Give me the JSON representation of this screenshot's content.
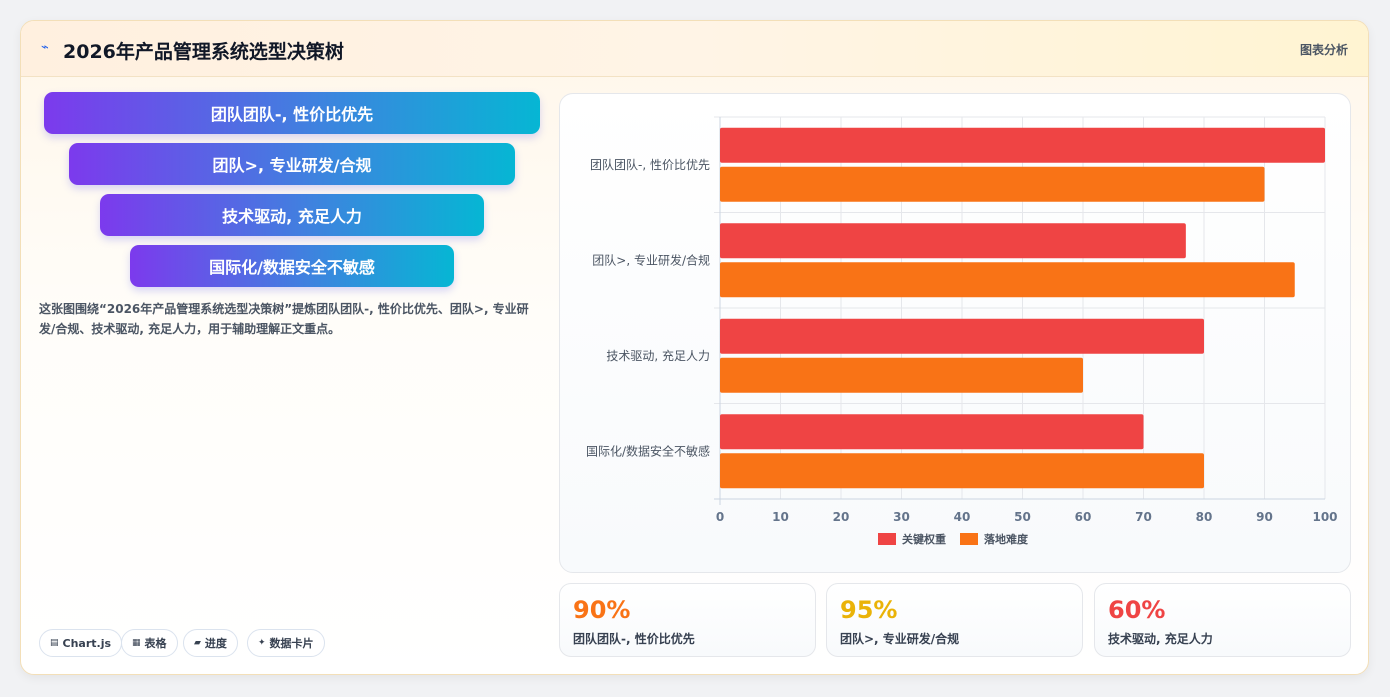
{
  "header": {
    "icon": "sparkle-line-icon",
    "title": "2026年产品管理系统选型决策树",
    "right_label": "图表分析"
  },
  "funnel": {
    "items": [
      {
        "label": "团队团队-, 性价比优先"
      },
      {
        "label": "团队>, 专业研发/合规"
      },
      {
        "label": "技术驱动, 充足人力"
      },
      {
        "label": "国际化/数据安全不敏感"
      }
    ]
  },
  "description": "这张图围绕“2026年产品管理系统选型决策树”提炼团队团队-, 性价比优先、团队>, 专业研发/合规、技术驱动, 充足人力，用于辅助理解正文重点。",
  "chips": [
    {
      "icon": "chart-icon",
      "glyph": "▤",
      "label": "Chart.js"
    },
    {
      "icon": "table-icon",
      "glyph": "▦",
      "label": "表格"
    },
    {
      "icon": "progress-icon",
      "glyph": "▰",
      "label": "进度"
    },
    {
      "icon": "card-icon",
      "glyph": "✦",
      "label": "数据卡片"
    }
  ],
  "chart_data": {
    "type": "bar",
    "orientation": "horizontal",
    "categories": [
      "团队团队-, 性价比优先",
      "团队>, 专业研发/合规",
      "技术驱动, 充足人力",
      "国际化/数据安全不敏感"
    ],
    "series": [
      {
        "name": "关键权重",
        "values": [
          100,
          77,
          80,
          70
        ],
        "color": "#ef4444"
      },
      {
        "name": "落地难度",
        "values": [
          90,
          95,
          60,
          80
        ],
        "color": "#f97316"
      }
    ],
    "xlim": [
      0,
      100
    ],
    "xticks": [
      0,
      10,
      20,
      30,
      40,
      50,
      60,
      70,
      80,
      90,
      100
    ],
    "grid": true,
    "legend_position": "bottom"
  },
  "stats": [
    {
      "value": "90%",
      "label": "团队团队-, 性价比优先",
      "color": "#f97316"
    },
    {
      "value": "95%",
      "label": "团队>, 专业研发/合规",
      "color": "#eab308"
    },
    {
      "value": "60%",
      "label": "技术驱动, 充足人力",
      "color": "#ef4444"
    }
  ]
}
